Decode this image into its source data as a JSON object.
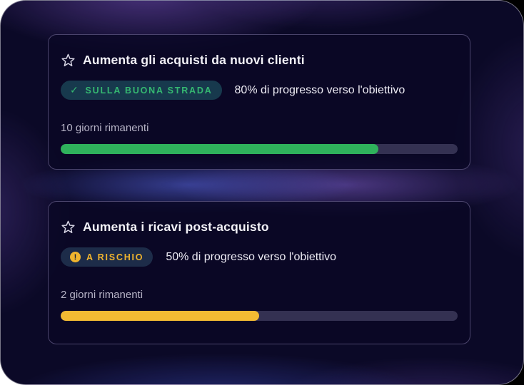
{
  "page_background": {
    "left_color": "#ffffff",
    "right_color": "#000000"
  },
  "panel": {
    "base_color": "#0b0927",
    "border_color": "rgba(255,255,255,0.45)"
  },
  "progress_track_color": "#343152",
  "icon_glyphs": {
    "check-icon": "✓",
    "alert-icon": "!"
  },
  "cards": [
    {
      "title": "Aumenta gli acquisti da nuovi clienti",
      "status": "on-track",
      "badge": {
        "icon": "check-icon",
        "label": "SULLA BUONA STRADA",
        "text_color": "#35b871",
        "bg_color": "#17394d"
      },
      "progress_text": "80% di progresso verso l'obiettivo",
      "progress_percent": 80,
      "bar_color": "#2fb25c",
      "days_remaining": "10 giorni rimanenti"
    },
    {
      "title": "Aumenta i ricavi post-acquisto",
      "status": "at-risk",
      "badge": {
        "icon": "alert-icon",
        "label": "A RISCHIO",
        "text_color": "#f0b42e",
        "bg_color": "#1d2c49"
      },
      "progress_text": "50% di progresso verso l'obiettivo",
      "progress_percent": 50,
      "bar_color": "#f3bb33",
      "days_remaining": "2 giorni rimanenti"
    }
  ]
}
